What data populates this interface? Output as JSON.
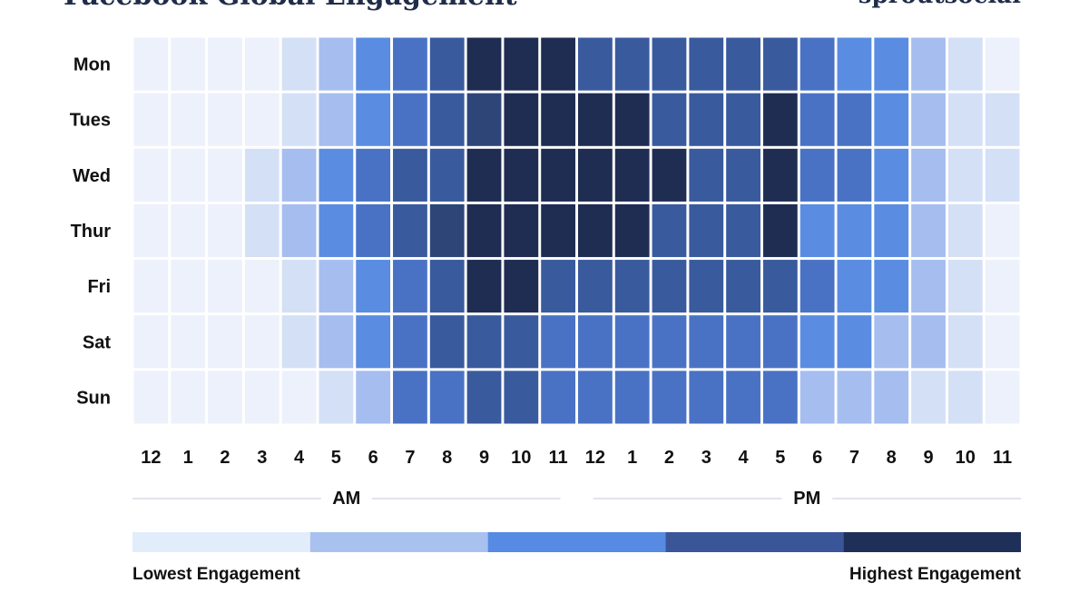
{
  "chart_data": {
    "type": "heatmap",
    "title": "Facebook Global Engagement",
    "brand": "sproutsocial",
    "rows": [
      "Mon",
      "Tues",
      "Wed",
      "Thur",
      "Fri",
      "Sat",
      "Sun"
    ],
    "columns": [
      "12",
      "1",
      "2",
      "3",
      "4",
      "5",
      "6",
      "7",
      "8",
      "9",
      "10",
      "11",
      "12",
      "1",
      "2",
      "3",
      "4",
      "5",
      "6",
      "7",
      "8",
      "9",
      "10",
      "11"
    ],
    "period_labels": [
      "AM",
      "PM"
    ],
    "level_scale": [
      0,
      4
    ],
    "levels": [
      [
        0.0,
        0.0,
        0.0,
        0.0,
        0.3,
        0.9,
        1.8,
        2.3,
        2.8,
        4.0,
        4.0,
        4.0,
        3.0,
        3.0,
        3.0,
        3.0,
        3.0,
        3.0,
        2.3,
        1.8,
        1.8,
        0.9,
        0.3,
        0.0
      ],
      [
        0.0,
        0.0,
        0.0,
        0.0,
        0.3,
        0.9,
        1.8,
        2.3,
        2.8,
        3.7,
        4.0,
        4.0,
        4.0,
        4.0,
        3.0,
        3.0,
        3.0,
        4.0,
        2.3,
        2.3,
        1.8,
        0.9,
        0.3,
        0.3
      ],
      [
        0.0,
        0.0,
        0.0,
        0.3,
        0.9,
        1.8,
        2.3,
        2.8,
        3.0,
        4.0,
        4.0,
        4.0,
        4.0,
        4.0,
        4.0,
        3.0,
        3.0,
        4.0,
        2.3,
        2.3,
        1.8,
        0.9,
        0.3,
        0.3
      ],
      [
        0.0,
        0.0,
        0.0,
        0.3,
        0.9,
        1.8,
        2.3,
        2.8,
        3.7,
        4.0,
        4.0,
        4.0,
        4.0,
        4.0,
        3.0,
        3.0,
        3.0,
        4.0,
        1.8,
        1.8,
        1.8,
        0.9,
        0.3,
        0.0
      ],
      [
        0.0,
        0.0,
        0.0,
        0.0,
        0.3,
        0.9,
        1.8,
        2.3,
        2.8,
        4.0,
        4.0,
        3.0,
        3.0,
        3.0,
        3.0,
        3.0,
        3.0,
        3.0,
        2.3,
        1.8,
        1.8,
        0.9,
        0.3,
        0.0
      ],
      [
        0.0,
        0.0,
        0.0,
        0.0,
        0.3,
        0.9,
        1.8,
        2.3,
        2.8,
        3.0,
        3.0,
        2.3,
        2.3,
        2.3,
        2.3,
        2.3,
        2.3,
        2.3,
        1.8,
        1.8,
        0.9,
        0.9,
        0.3,
        0.0
      ],
      [
        0.0,
        0.0,
        0.0,
        0.0,
        0.0,
        0.3,
        0.9,
        2.3,
        2.3,
        2.8,
        3.0,
        2.3,
        2.3,
        2.3,
        2.3,
        2.3,
        2.3,
        2.3,
        0.9,
        0.9,
        0.9,
        0.3,
        0.3,
        0.0
      ]
    ],
    "legend": {
      "low_label": "Lowest Engagement",
      "high_label": "Highest Engagement",
      "steps": [
        "#e2edfb",
        "#a9c1ef",
        "#568ae3",
        "#3b5599",
        "#1f3058"
      ]
    },
    "colors": {
      "l0": "#edf1fb",
      "l1": "#d4e0f6",
      "l2": "#a6bdef",
      "l3": "#5a8ce2",
      "l4": "#4a72c4",
      "l5": "#3a5a9e",
      "l6": "#2e4578",
      "l7": "#1f2d52",
      "rule": "#e2e4ea"
    }
  }
}
